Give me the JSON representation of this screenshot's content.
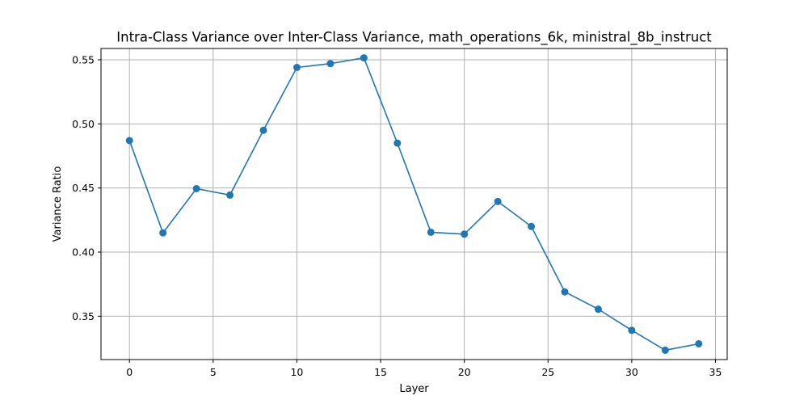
{
  "chart_data": {
    "type": "line",
    "title": "Intra-Class Variance over Inter-Class Variance, math_operations_6k, ministral_8b_instruct",
    "xlabel": "Layer",
    "ylabel": "Variance Ratio",
    "xlim": [
      -1.7,
      35.7
    ],
    "ylim": [
      0.3162,
      0.5588
    ],
    "xticks": [
      0,
      5,
      10,
      15,
      20,
      25,
      30,
      35
    ],
    "xtick_labels": [
      "0",
      "5",
      "10",
      "15",
      "20",
      "25",
      "30",
      "35"
    ],
    "yticks": [
      0.35,
      0.4,
      0.45,
      0.5,
      0.55
    ],
    "ytick_labels": [
      "0.35",
      "0.40",
      "0.45",
      "0.50",
      "0.55"
    ],
    "grid": true,
    "color": "#1f77b4",
    "x": [
      0,
      2,
      4,
      6,
      8,
      10,
      12,
      14,
      16,
      18,
      20,
      22,
      24,
      26,
      28,
      30,
      32,
      34
    ],
    "y": [
      0.487,
      0.415,
      0.4495,
      0.4445,
      0.495,
      0.544,
      0.547,
      0.5515,
      0.485,
      0.4155,
      0.414,
      0.4395,
      0.42,
      0.369,
      0.3555,
      0.339,
      0.3235,
      0.3285
    ]
  }
}
